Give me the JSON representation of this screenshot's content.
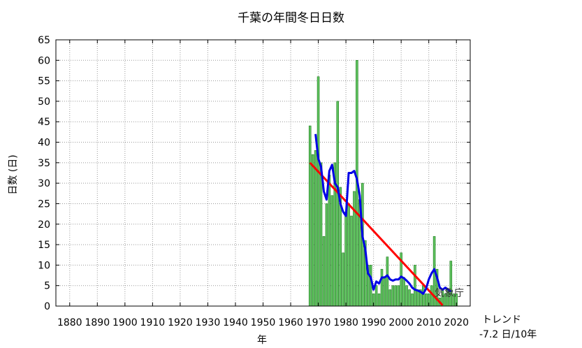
{
  "chart_data": {
    "type": "bar",
    "title": "千葉の年間冬日日数",
    "xlabel": "年",
    "ylabel": "日数 (日)",
    "xlim": [
      1875,
      2025
    ],
    "ylim": [
      0,
      65
    ],
    "yticks": [
      0,
      5,
      10,
      15,
      20,
      25,
      30,
      35,
      40,
      45,
      50,
      55,
      60,
      65
    ],
    "xticks": [
      1880,
      1890,
      1900,
      1910,
      1920,
      1930,
      1940,
      1950,
      1960,
      1970,
      1980,
      1990,
      2000,
      2010,
      2020
    ],
    "grid": true,
    "years": [
      1967,
      1968,
      1969,
      1970,
      1971,
      1972,
      1973,
      1974,
      1975,
      1976,
      1977,
      1978,
      1979,
      1980,
      1981,
      1982,
      1983,
      1984,
      1985,
      1986,
      1987,
      1988,
      1989,
      1990,
      1991,
      1992,
      1993,
      1994,
      1995,
      1996,
      1997,
      1998,
      1999,
      2000,
      2001,
      2002,
      2003,
      2004,
      2005,
      2006,
      2007,
      2008,
      2009,
      2010,
      2011,
      2012,
      2013,
      2014,
      2015,
      2016,
      2017,
      2018,
      2019,
      2020
    ],
    "values": [
      44,
      37,
      38,
      56,
      35,
      17,
      25,
      32,
      27,
      35,
      50,
      29,
      13,
      23,
      25,
      22,
      28,
      60,
      26,
      30,
      16,
      10,
      10,
      3,
      5,
      3,
      9,
      7,
      12,
      4,
      5,
      5,
      5,
      13,
      7,
      5,
      4,
      3,
      10,
      4,
      4,
      5,
      3,
      3,
      5,
      17,
      9,
      2,
      4,
      3,
      4,
      11,
      3,
      3
    ],
    "moving_average": {
      "years": [
        1969,
        1970,
        1971,
        1972,
        1973,
        1974,
        1975,
        1976,
        1977,
        1978,
        1979,
        1980,
        1981,
        1982,
        1983,
        1984,
        1985,
        1986,
        1987,
        1988,
        1989,
        1990,
        1991,
        1992,
        1993,
        1994,
        1995,
        1996,
        1997,
        1998,
        1999,
        2000,
        2001,
        2002,
        2003,
        2004,
        2005,
        2006,
        2007,
        2008,
        2009,
        2010,
        2011,
        2012,
        2013,
        2014,
        2015,
        2016,
        2017,
        2018
      ],
      "values": [
        42,
        36,
        34,
        28,
        26,
        33,
        34.5,
        30,
        29,
        25,
        23,
        22,
        32.5,
        32.5,
        33,
        31,
        27,
        17,
        14,
        8,
        7,
        4,
        6,
        5.5,
        7,
        7,
        7.5,
        6.5,
        6.2,
        6.5,
        6.5,
        7.2,
        6.8,
        6.2,
        5.5,
        4.5,
        4,
        3.8,
        3.5,
        3,
        4.2,
        6.5,
        8,
        9,
        7,
        4.5,
        4,
        4.5,
        4,
        3.5
      ]
    },
    "trend_line": {
      "x": [
        1967,
        2015
      ],
      "y": [
        35,
        0.2
      ]
    },
    "bar_color": "#5fc35f",
    "bar_edge": "#1e7a1e",
    "ma_color": "#0000e6",
    "trend_color": "#ff0000"
  },
  "trend": {
    "title": "トレンド",
    "value": "-7.2 日/10年"
  },
  "source": "気象庁"
}
